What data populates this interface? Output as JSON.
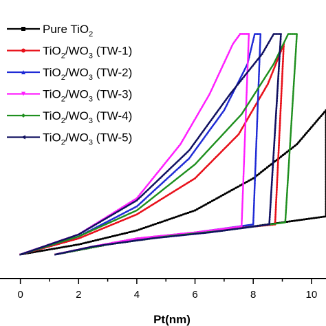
{
  "chart_data": {
    "type": "line",
    "title": "",
    "xlabel": "Pt(nm)",
    "ylabel": "",
    "xlim": [
      -0.7,
      10.5
    ],
    "ylim": [
      -0.12,
      1.27
    ],
    "xticks": [
      0,
      2,
      4,
      6,
      8,
      10
    ],
    "grid": false,
    "legend_position": "top-left",
    "series": [
      {
        "name": "Pure TiO2",
        "legend": {
          "main": "Pure TiO",
          "sub": "2",
          "tail": ""
        },
        "color": "#000000",
        "marker": "square",
        "load": [
          [
            0,
            0
          ],
          [
            2,
            0.05
          ],
          [
            4,
            0.12
          ],
          [
            6,
            0.22
          ],
          [
            8,
            0.38
          ],
          [
            9.5,
            0.55
          ],
          [
            10.5,
            0.72
          ]
        ],
        "unload": [
          [
            10.5,
            0.72
          ],
          [
            10.5,
            0.19
          ],
          [
            9,
            0.16
          ],
          [
            7,
            0.12
          ],
          [
            5,
            0.09
          ],
          [
            3,
            0.05
          ],
          [
            1.2,
            0
          ]
        ]
      },
      {
        "name": "TiO2/WO3 (TW-1)",
        "legend": {
          "main": "TiO",
          "sub": "2",
          "mid": "/WO",
          "sub2": "3",
          "tail": " (TW-1)"
        },
        "color": "#e8101a",
        "marker": "circle",
        "load": [
          [
            0,
            0
          ],
          [
            2,
            0.08
          ],
          [
            4,
            0.2
          ],
          [
            6,
            0.38
          ],
          [
            7.5,
            0.6
          ],
          [
            8.5,
            0.85
          ],
          [
            9.05,
            1.05
          ]
        ],
        "unload": [
          [
            9.05,
            1.05
          ],
          [
            8.75,
            0.15
          ],
          [
            6,
            0.11
          ],
          [
            4,
            0.08
          ],
          [
            2.5,
            0.04
          ],
          [
            1.2,
            0
          ]
        ]
      },
      {
        "name": "TiO2/WO3 (TW-2)",
        "legend": {
          "main": "TiO",
          "sub": "2",
          "mid": "/WO",
          "sub2": "3",
          "tail": " (TW-2)"
        },
        "color": "#1f2bd6",
        "marker": "triangle",
        "load": [
          [
            0,
            0
          ],
          [
            2,
            0.09
          ],
          [
            4,
            0.24
          ],
          [
            5.8,
            0.48
          ],
          [
            7,
            0.72
          ],
          [
            7.8,
            0.95
          ],
          [
            8.05,
            1.1
          ],
          [
            8.25,
            1.1
          ]
        ],
        "unload": [
          [
            8.25,
            1.1
          ],
          [
            8.0,
            0.15
          ],
          [
            6,
            0.11
          ],
          [
            4,
            0.08
          ],
          [
            2.5,
            0.04
          ],
          [
            1.2,
            0
          ]
        ]
      },
      {
        "name": "TiO2/WO3 (TW-3)",
        "legend": {
          "main": "TiO",
          "sub": "2",
          "mid": "/WO",
          "sub2": "3",
          "tail": " (TW-3)"
        },
        "color": "#ff1fff",
        "marker": "down-triangle",
        "load": [
          [
            0,
            0
          ],
          [
            2,
            0.1
          ],
          [
            4,
            0.28
          ],
          [
            5.5,
            0.55
          ],
          [
            6.5,
            0.8
          ],
          [
            7.3,
            1.05
          ],
          [
            7.55,
            1.1
          ],
          [
            7.85,
            1.1
          ]
        ],
        "unload": [
          [
            7.85,
            1.1
          ],
          [
            7.6,
            0.14
          ],
          [
            6,
            0.11
          ],
          [
            4,
            0.08
          ],
          [
            2.5,
            0.04
          ],
          [
            1.2,
            0
          ]
        ]
      },
      {
        "name": "TiO2/WO3 (TW-4)",
        "legend": {
          "main": "TiO",
          "sub": "2",
          "mid": "/WO",
          "sub2": "3",
          "tail": " (TW-4)"
        },
        "color": "#1e8f1e",
        "marker": "diamond",
        "load": [
          [
            0,
            0
          ],
          [
            2,
            0.09
          ],
          [
            4,
            0.22
          ],
          [
            6,
            0.45
          ],
          [
            7.6,
            0.7
          ],
          [
            8.7,
            0.95
          ],
          [
            9.2,
            1.1
          ],
          [
            9.5,
            1.1
          ]
        ],
        "unload": [
          [
            9.5,
            1.1
          ],
          [
            9.1,
            0.16
          ],
          [
            7,
            0.12
          ],
          [
            5,
            0.09
          ],
          [
            3,
            0.05
          ],
          [
            1.2,
            0
          ]
        ]
      },
      {
        "name": "TiO2/WO3 (TW-5)",
        "legend": {
          "main": "TiO",
          "sub": "2",
          "mid": "/WO",
          "sub2": "3",
          "tail": " (TW-5)"
        },
        "color": "#101060",
        "marker": "left-triangle",
        "load": [
          [
            0,
            0
          ],
          [
            2,
            0.1
          ],
          [
            4,
            0.27
          ],
          [
            5.8,
            0.52
          ],
          [
            7.2,
            0.8
          ],
          [
            8.3,
            1.0
          ],
          [
            8.7,
            1.1
          ],
          [
            8.95,
            1.1
          ]
        ],
        "unload": [
          [
            8.95,
            1.1
          ],
          [
            8.55,
            0.15
          ],
          [
            6.5,
            0.11
          ],
          [
            4.5,
            0.08
          ],
          [
            2.5,
            0.04
          ],
          [
            1.2,
            0
          ]
        ]
      }
    ]
  }
}
